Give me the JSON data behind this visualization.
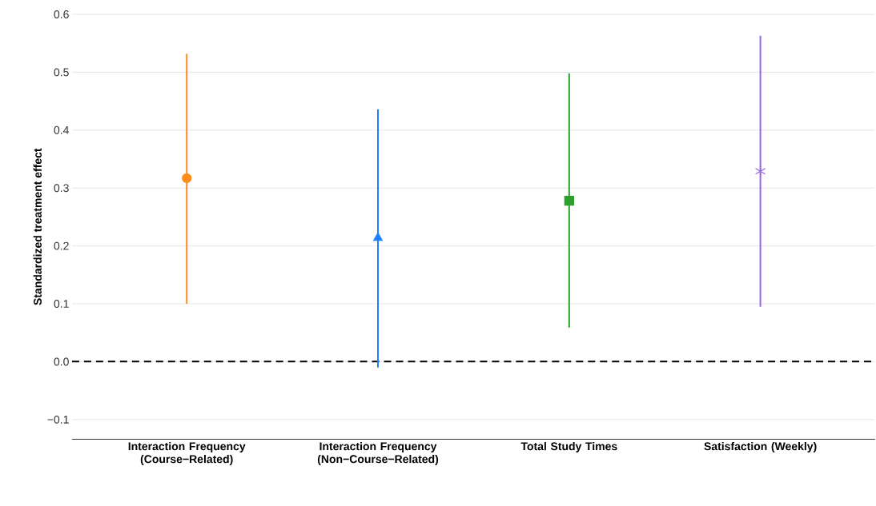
{
  "chart_data": {
    "type": "scatter",
    "ylabel": "Standardized treatment effect",
    "categories": [
      "Interaction Frequency (Course−Related)",
      "Interaction Frequency (Non−Course−Related)",
      "Total Study Times",
      "Satisfaction (Weekly)"
    ],
    "series": [
      {
        "color": "#ff8c1a",
        "marker": "circle",
        "values": [
          0.317,
          null,
          null,
          null
        ],
        "errors": [
          [
            0.1,
            0.532
          ],
          null,
          null,
          null
        ]
      },
      {
        "color": "#1f7fff",
        "marker": "triangle",
        "values": [
          null,
          0.214,
          null,
          null
        ],
        "errors": [
          null,
          [
            -0.01,
            0.436
          ],
          null,
          null
        ]
      },
      {
        "color": "#2ca02c",
        "marker": "square",
        "values": [
          null,
          null,
          0.278,
          null
        ],
        "errors": [
          null,
          null,
          [
            0.059,
            0.498
          ],
          null
        ]
      },
      {
        "color": "#9467dd",
        "marker": "cross",
        "values": [
          null,
          null,
          null,
          0.329
        ],
        "errors": [
          null,
          null,
          null,
          [
            0.095,
            0.563
          ]
        ]
      }
    ],
    "ylim": [
      -0.134,
      0.6
    ],
    "yticks": [
      {
        "value": -0.1,
        "label": "−0.1"
      },
      {
        "value": 0,
        "label": "0.0"
      },
      0.1,
      0.2,
      0.3,
      0.4,
      0.5,
      0.6
    ],
    "grid": "y",
    "ref_lines": [
      {
        "axis": "y",
        "value": 0,
        "line_style": "dashed",
        "color": "#000000"
      }
    ]
  }
}
